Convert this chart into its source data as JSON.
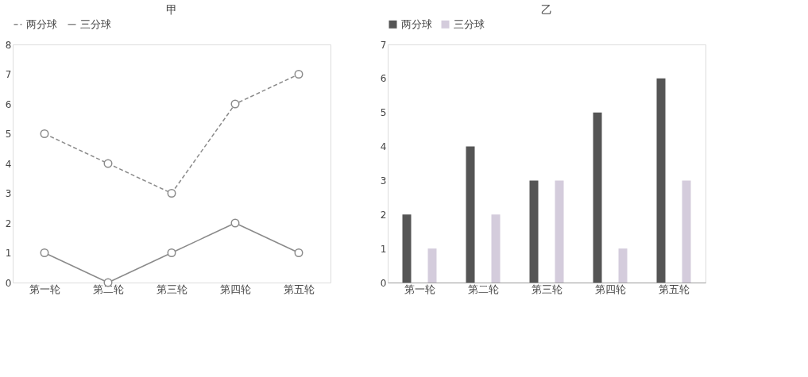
{
  "chart_data": [
    {
      "type": "line",
      "title": "甲",
      "categories": [
        "第一轮",
        "第二轮",
        "第三轮",
        "第四轮",
        "第五轮"
      ],
      "ylim": [
        0,
        8
      ],
      "yticks": [
        0,
        1,
        2,
        3,
        4,
        5,
        6,
        7,
        8
      ],
      "legend": "top",
      "marker": "circle",
      "series": [
        {
          "name": "两分球",
          "color": "#8a8a8a",
          "line_style": "dashed",
          "values": [
            5,
            4,
            3,
            6,
            7
          ]
        },
        {
          "name": "三分球",
          "color": "#8a8a8a",
          "line_style": "solid",
          "values": [
            1,
            0,
            1,
            2,
            1
          ]
        }
      ]
    },
    {
      "type": "bar",
      "title": "乙",
      "categories": [
        "第一轮",
        "第二轮",
        "第三轮",
        "第四轮",
        "第五轮"
      ],
      "ylim": [
        0,
        7
      ],
      "yticks": [
        0,
        1,
        2,
        3,
        4,
        5,
        6,
        7
      ],
      "legend": "top",
      "series": [
        {
          "name": "两分球",
          "color": "#555555",
          "values": [
            2,
            4,
            3,
            5,
            6
          ]
        },
        {
          "name": "三分球",
          "color": "#d4ccdc",
          "values": [
            1,
            2,
            3,
            1,
            3
          ]
        }
      ]
    }
  ]
}
